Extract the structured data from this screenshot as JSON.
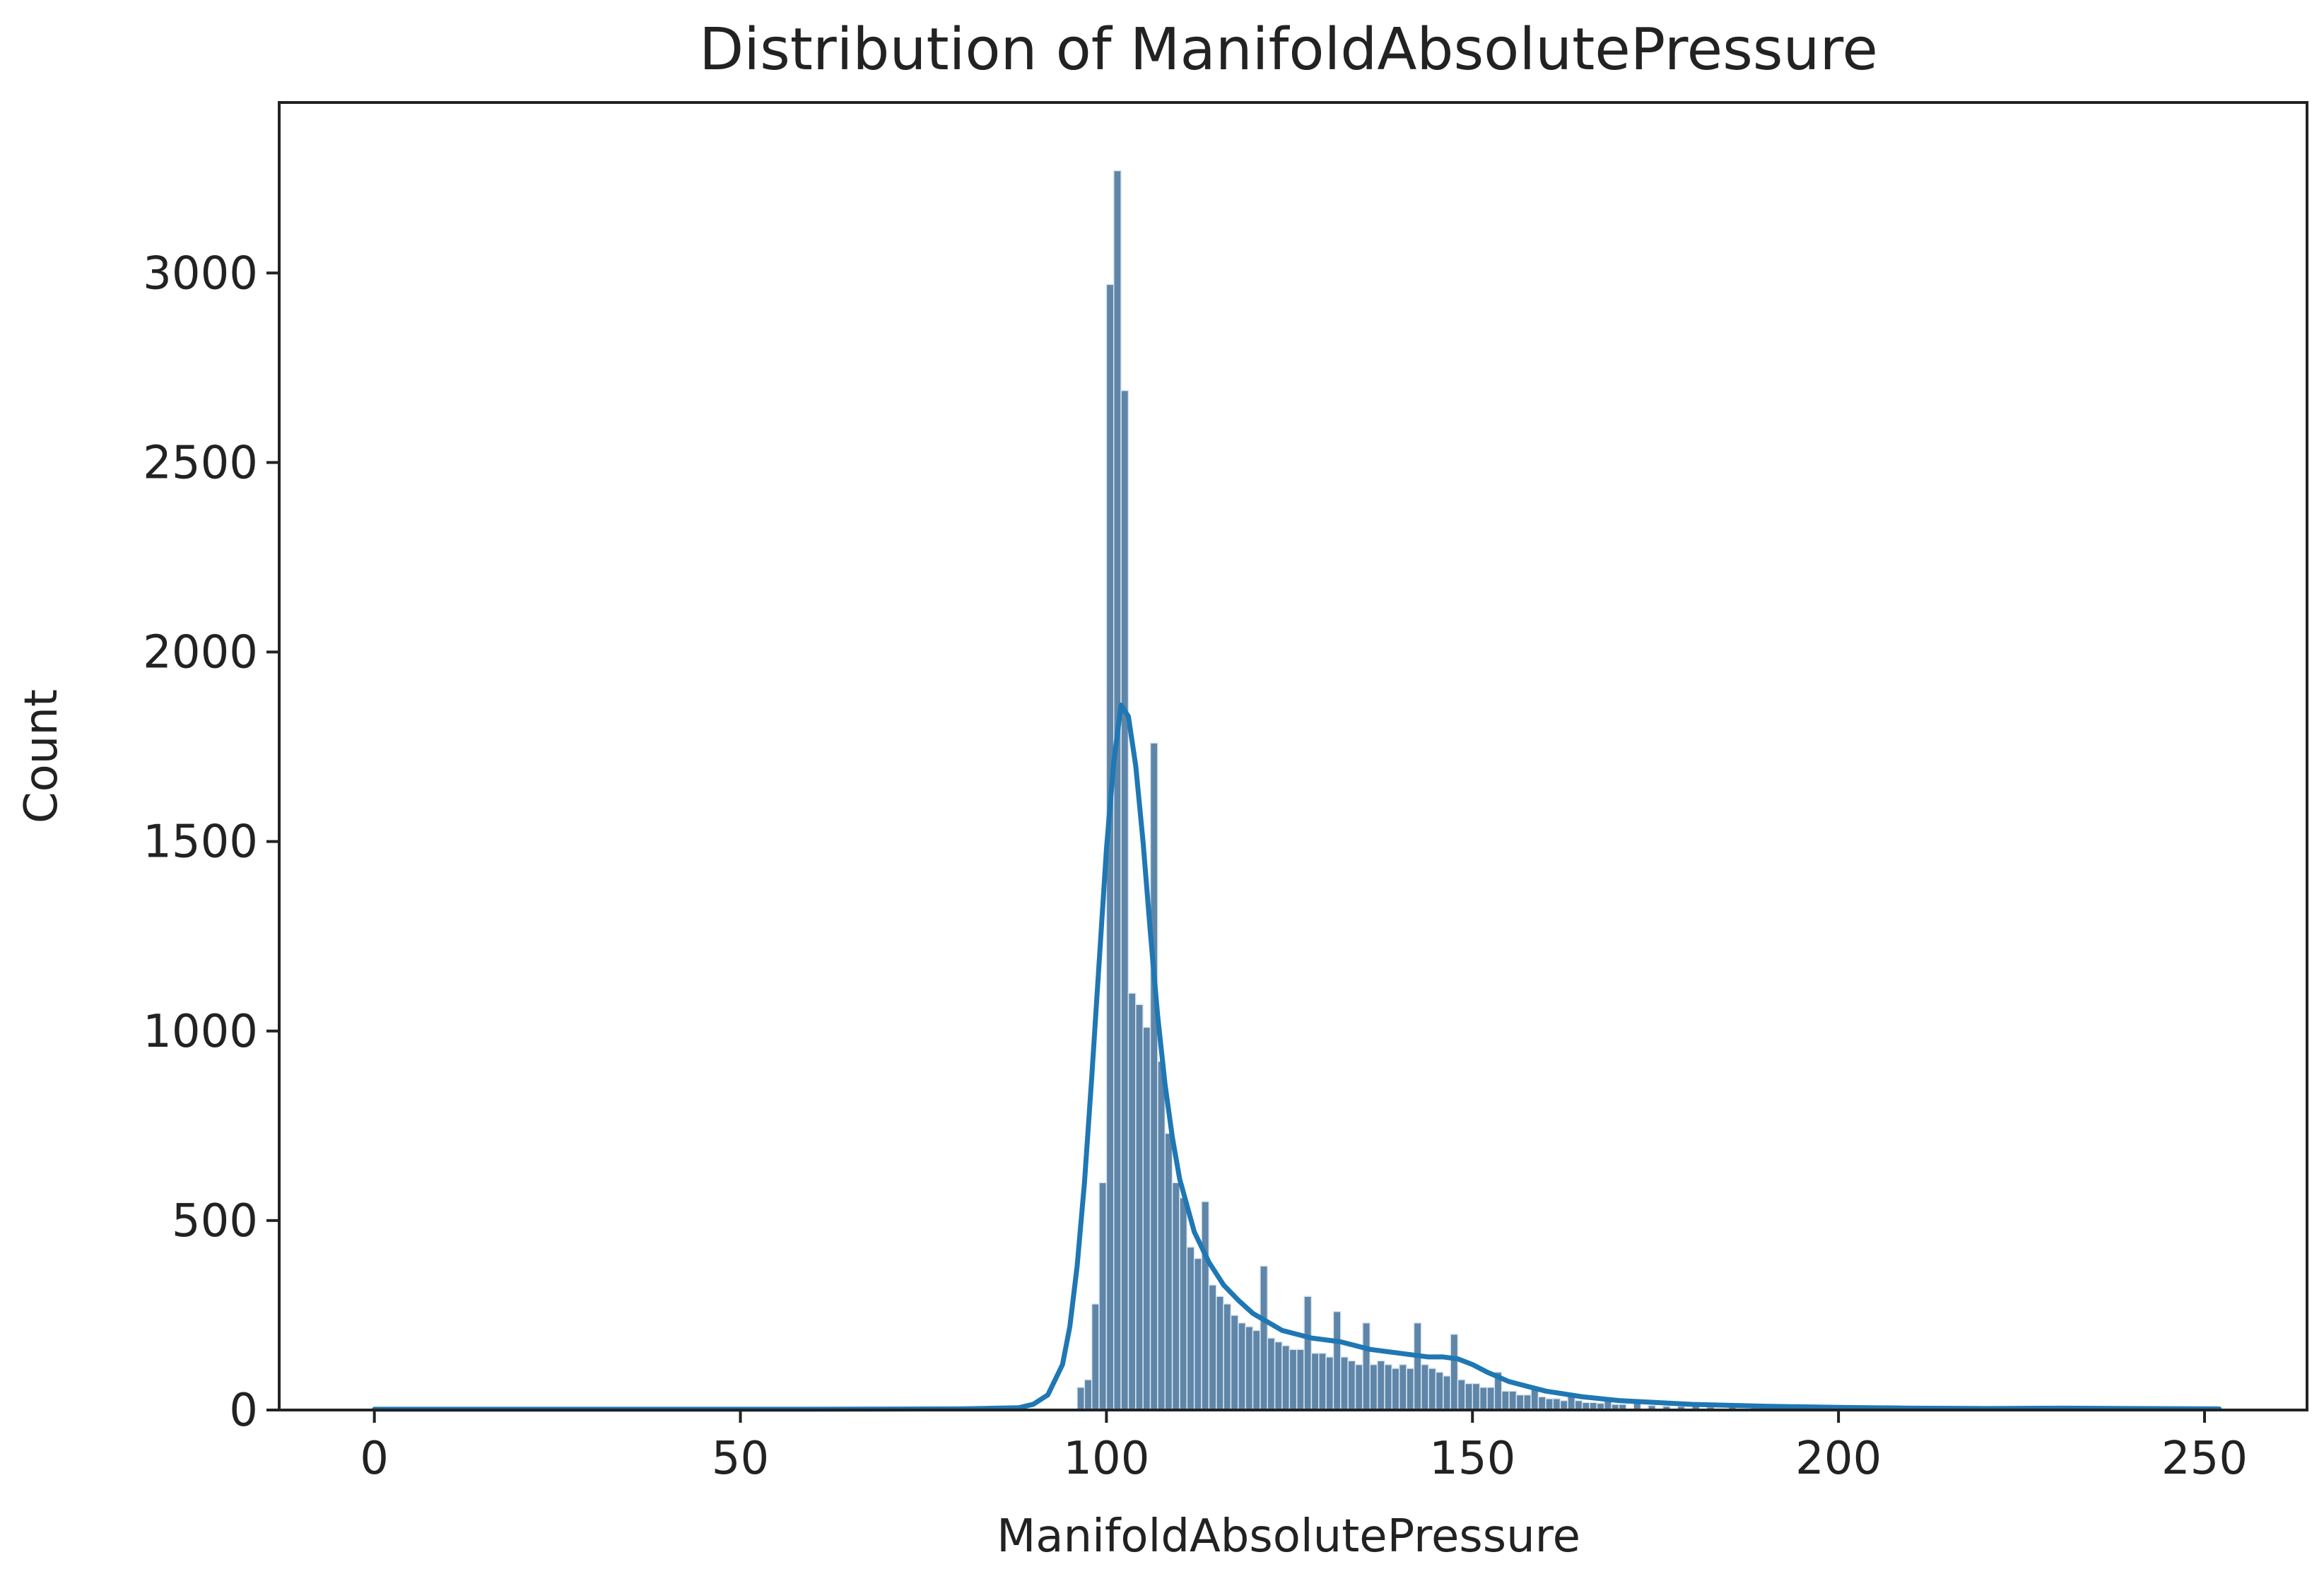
{
  "chart_data": {
    "type": "bar",
    "title": "Distribution of ManifoldAbsolutePressure",
    "xlabel": "ManifoldAbsolutePressure",
    "ylabel": "Count",
    "xlim": [
      -13,
      264
    ],
    "ylim": [
      0,
      3450
    ],
    "x_ticks": [
      0,
      50,
      100,
      150,
      200,
      250
    ],
    "y_ticks": [
      0,
      500,
      1000,
      1500,
      2000,
      2500,
      3000
    ],
    "grid": false,
    "legend": "none",
    "colors": {
      "bars": "#5f86a8",
      "bar_edge": "#dce7f1",
      "kde": "#1f77b4",
      "axes": "#222222"
    },
    "bin_width": 1.0,
    "bins": [
      {
        "x": 96.5,
        "count": 60
      },
      {
        "x": 97.5,
        "count": 80
      },
      {
        "x": 98.5,
        "count": 280
      },
      {
        "x": 99.5,
        "count": 600
      },
      {
        "x": 100.5,
        "count": 2970
      },
      {
        "x": 101.5,
        "count": 3270
      },
      {
        "x": 102.5,
        "count": 2690
      },
      {
        "x": 103.5,
        "count": 1100
      },
      {
        "x": 104.5,
        "count": 1070
      },
      {
        "x": 105.5,
        "count": 1010
      },
      {
        "x": 106.5,
        "count": 1760
      },
      {
        "x": 107.5,
        "count": 920
      },
      {
        "x": 108.5,
        "count": 730
      },
      {
        "x": 109.5,
        "count": 600
      },
      {
        "x": 110.5,
        "count": 560
      },
      {
        "x": 111.5,
        "count": 430
      },
      {
        "x": 112.5,
        "count": 400
      },
      {
        "x": 113.5,
        "count": 550
      },
      {
        "x": 114.5,
        "count": 330
      },
      {
        "x": 115.5,
        "count": 300
      },
      {
        "x": 116.5,
        "count": 280
      },
      {
        "x": 117.5,
        "count": 250
      },
      {
        "x": 118.5,
        "count": 230
      },
      {
        "x": 119.5,
        "count": 220
      },
      {
        "x": 120.5,
        "count": 210
      },
      {
        "x": 121.5,
        "count": 380
      },
      {
        "x": 122.5,
        "count": 190
      },
      {
        "x": 123.5,
        "count": 180
      },
      {
        "x": 124.5,
        "count": 170
      },
      {
        "x": 125.5,
        "count": 160
      },
      {
        "x": 126.5,
        "count": 160
      },
      {
        "x": 127.5,
        "count": 300
      },
      {
        "x": 128.5,
        "count": 150
      },
      {
        "x": 129.5,
        "count": 150
      },
      {
        "x": 130.5,
        "count": 140
      },
      {
        "x": 131.5,
        "count": 260
      },
      {
        "x": 132.5,
        "count": 140
      },
      {
        "x": 133.5,
        "count": 130
      },
      {
        "x": 134.5,
        "count": 120
      },
      {
        "x": 135.5,
        "count": 230
      },
      {
        "x": 136.5,
        "count": 120
      },
      {
        "x": 137.5,
        "count": 130
      },
      {
        "x": 138.5,
        "count": 120
      },
      {
        "x": 139.5,
        "count": 110
      },
      {
        "x": 140.5,
        "count": 120
      },
      {
        "x": 141.5,
        "count": 110
      },
      {
        "x": 142.5,
        "count": 230
      },
      {
        "x": 143.5,
        "count": 120
      },
      {
        "x": 144.5,
        "count": 110
      },
      {
        "x": 145.5,
        "count": 100
      },
      {
        "x": 146.5,
        "count": 90
      },
      {
        "x": 147.5,
        "count": 200
      },
      {
        "x": 148.5,
        "count": 80
      },
      {
        "x": 149.5,
        "count": 70
      },
      {
        "x": 150.5,
        "count": 70
      },
      {
        "x": 151.5,
        "count": 60
      },
      {
        "x": 152.5,
        "count": 60
      },
      {
        "x": 153.5,
        "count": 100
      },
      {
        "x": 154.5,
        "count": 50
      },
      {
        "x": 155.5,
        "count": 50
      },
      {
        "x": 156.5,
        "count": 40
      },
      {
        "x": 157.5,
        "count": 40
      },
      {
        "x": 158.5,
        "count": 60
      },
      {
        "x": 159.5,
        "count": 35
      },
      {
        "x": 160.5,
        "count": 30
      },
      {
        "x": 161.5,
        "count": 30
      },
      {
        "x": 162.5,
        "count": 25
      },
      {
        "x": 163.5,
        "count": 40
      },
      {
        "x": 164.5,
        "count": 25
      },
      {
        "x": 165.5,
        "count": 20
      },
      {
        "x": 166.5,
        "count": 20
      },
      {
        "x": 167.5,
        "count": 18
      },
      {
        "x": 168.5,
        "count": 30
      },
      {
        "x": 169.5,
        "count": 15
      },
      {
        "x": 170.5,
        "count": 15
      },
      {
        "x": 172.5,
        "count": 20
      },
      {
        "x": 174.5,
        "count": 12
      },
      {
        "x": 176.5,
        "count": 10
      },
      {
        "x": 178.5,
        "count": 10
      },
      {
        "x": 180.5,
        "count": 15
      },
      {
        "x": 182.5,
        "count": 8
      },
      {
        "x": 185.5,
        "count": 8
      },
      {
        "x": 188.5,
        "count": 6
      },
      {
        "x": 192.5,
        "count": 10
      },
      {
        "x": 196.5,
        "count": 5
      },
      {
        "x": 200.5,
        "count": 4
      },
      {
        "x": 205.5,
        "count": 3
      },
      {
        "x": 210.5,
        "count": 3
      },
      {
        "x": 218.5,
        "count": 2
      },
      {
        "x": 228.5,
        "count": 2
      },
      {
        "x": 240.5,
        "count": 1
      }
    ],
    "kde": {
      "x": [
        0,
        20,
        40,
        60,
        80,
        88,
        90,
        92,
        94,
        95,
        96,
        97,
        98,
        99,
        100,
        101,
        102,
        103,
        104,
        105,
        106,
        107,
        108,
        109,
        110,
        112,
        114,
        116,
        118,
        120,
        124,
        128,
        132,
        136,
        140,
        144,
        146,
        148,
        150,
        152,
        155,
        160,
        165,
        170,
        180,
        190,
        200,
        210,
        220,
        230,
        240,
        252
      ],
      "y": [
        2,
        2,
        2,
        2,
        3,
        6,
        15,
        40,
        120,
        220,
        380,
        600,
        880,
        1180,
        1480,
        1710,
        1860,
        1830,
        1700,
        1500,
        1260,
        1040,
        860,
        720,
        610,
        470,
        390,
        330,
        290,
        255,
        210,
        190,
        180,
        160,
        150,
        140,
        140,
        135,
        120,
        100,
        75,
        50,
        35,
        25,
        15,
        10,
        7,
        5,
        4,
        5,
        4,
        3
      ]
    }
  }
}
